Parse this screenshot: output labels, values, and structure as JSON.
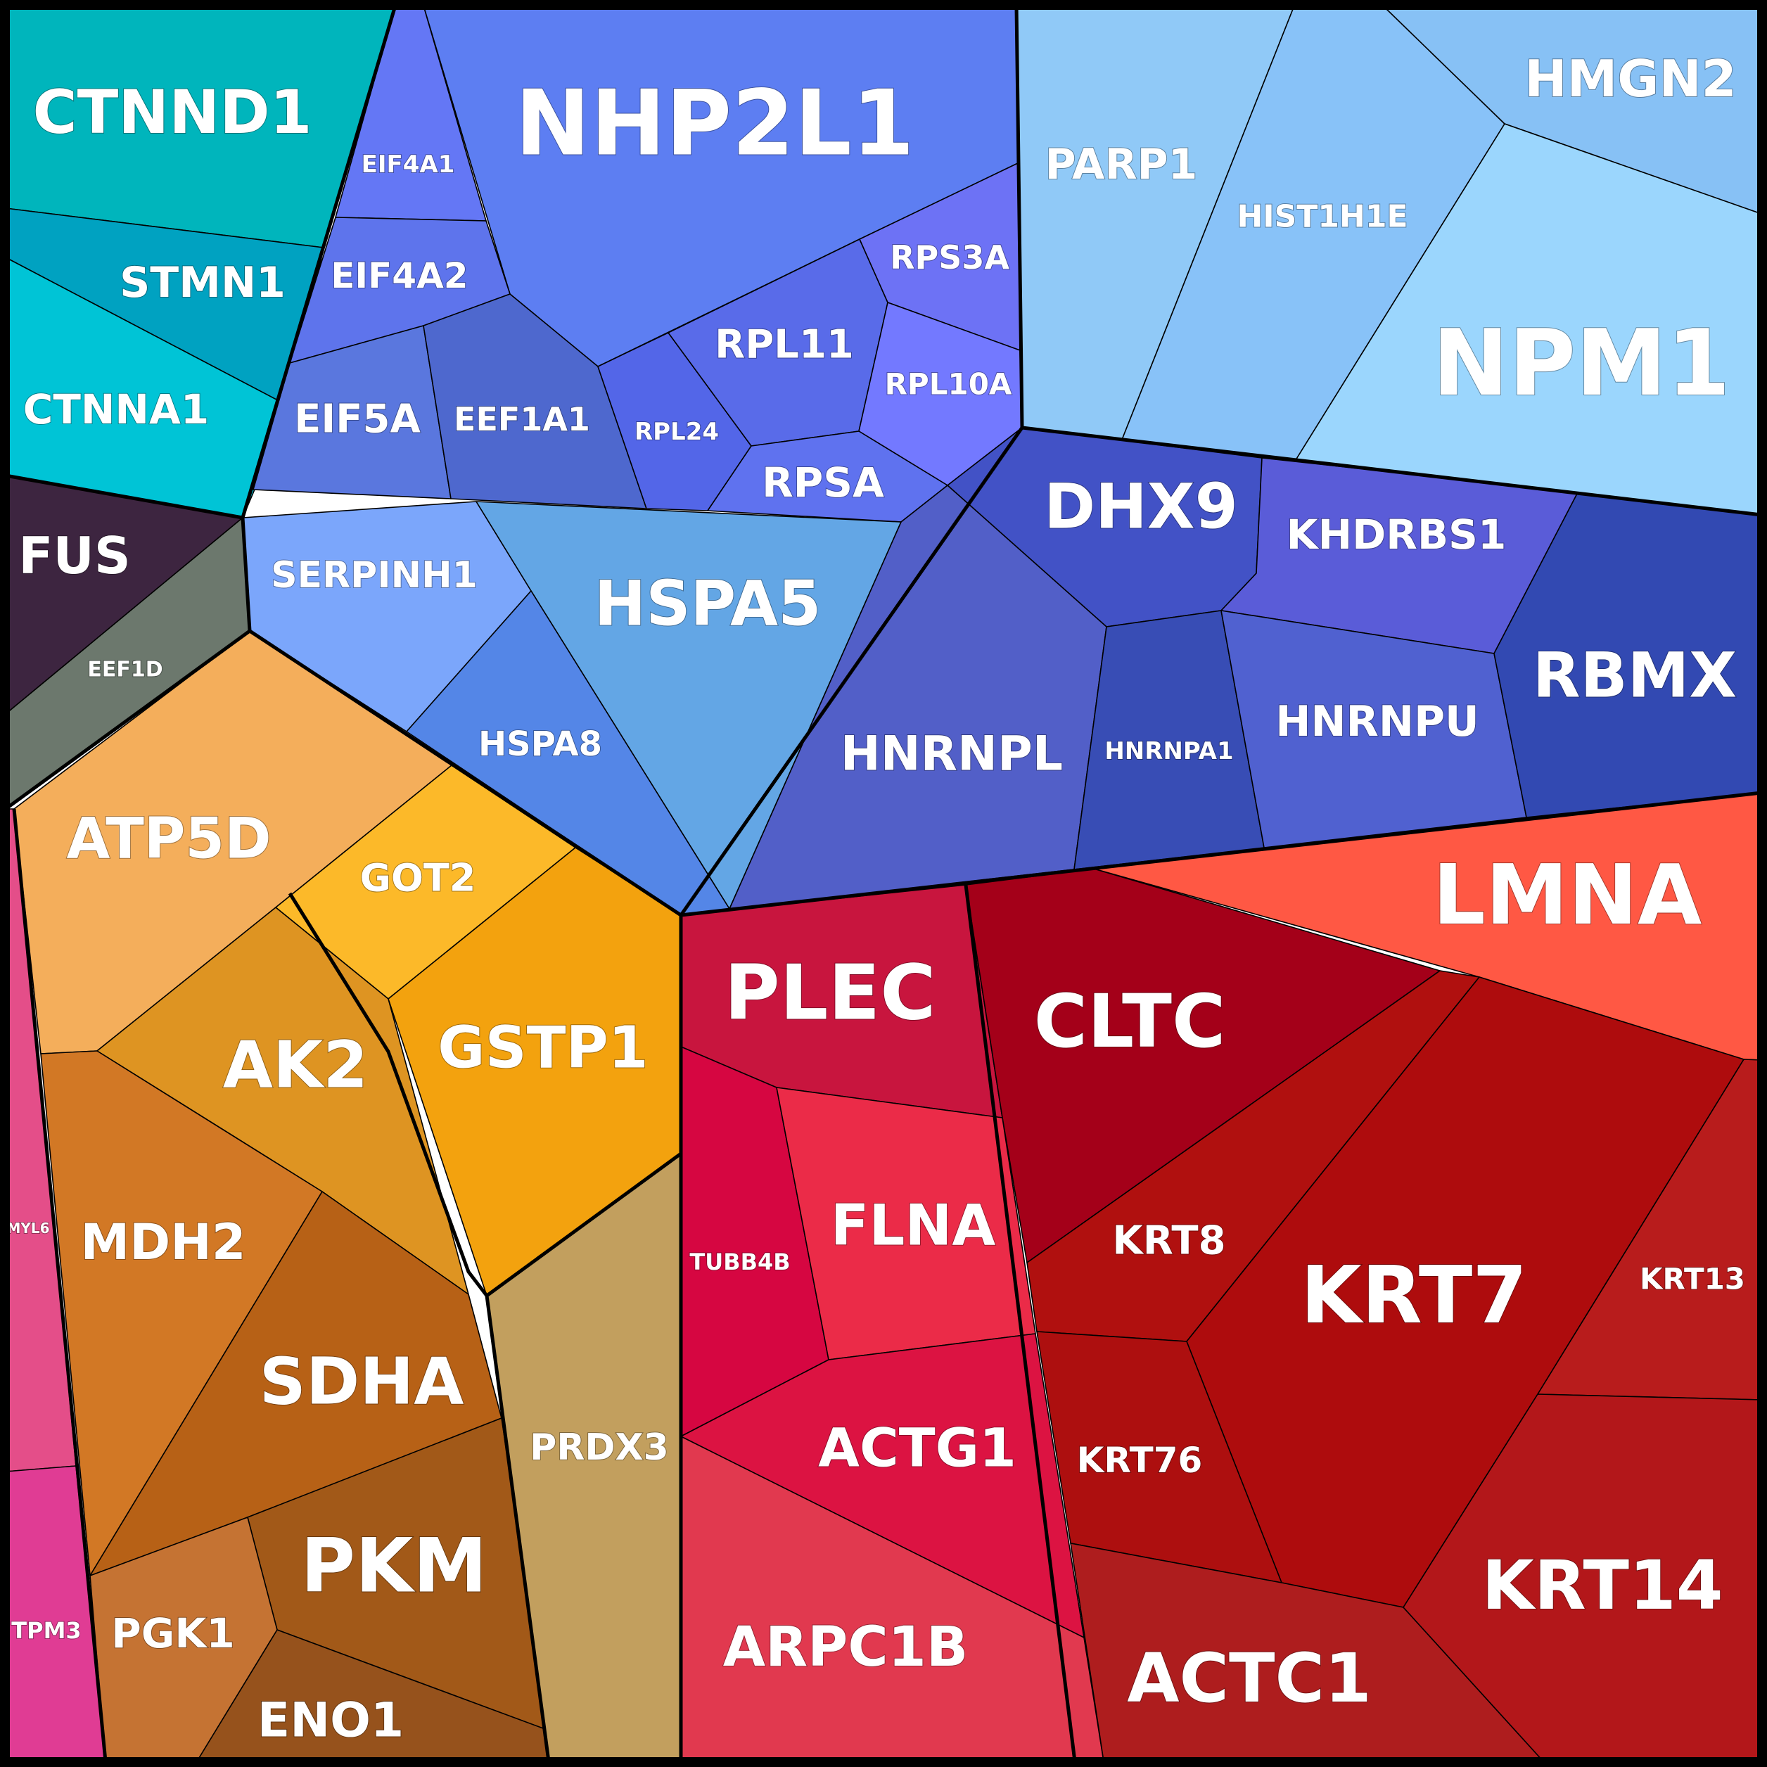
{
  "cells": [
    {
      "name": "CTNND1",
      "color": "#00B5BC"
    },
    {
      "name": "STMN1",
      "color": "#00A2C1"
    },
    {
      "name": "CTNNA1",
      "color": "#00C4D6"
    },
    {
      "name": "NHP2L1",
      "color": "#5D7EF2"
    },
    {
      "name": "EIF4A1",
      "color": "#6477F5"
    },
    {
      "name": "EIF4A2",
      "color": "#5E74EC"
    },
    {
      "name": "EIF5A",
      "color": "#5A77DE"
    },
    {
      "name": "EEF1A1",
      "color": "#4E68CE"
    },
    {
      "name": "RPL24",
      "color": "#5366E8"
    },
    {
      "name": "RPL11",
      "color": "#596BE9"
    },
    {
      "name": "RPS3A",
      "color": "#6D72F5"
    },
    {
      "name": "RPL10A",
      "color": "#7379FF"
    },
    {
      "name": "RPSA",
      "color": "#5F72EF"
    },
    {
      "name": "PARP1",
      "color": "#90C9F7"
    },
    {
      "name": "HIST1H1E",
      "color": "#88C2F8"
    },
    {
      "name": "HMGN2",
      "color": "#87C1F5"
    },
    {
      "name": "NPM1",
      "color": "#9BD6FD"
    },
    {
      "name": "FUS",
      "color": "#3D2540"
    },
    {
      "name": "EEF1D",
      "color": "#6C786D"
    },
    {
      "name": "SERPINH1",
      "color": "#7BA6FB"
    },
    {
      "name": "HSPA5",
      "color": "#63A6E5"
    },
    {
      "name": "HSPA8",
      "color": "#5486E7"
    },
    {
      "name": "DHX9",
      "color": "#4252C6"
    },
    {
      "name": "KHDRBS1",
      "color": "#5A5CD8"
    },
    {
      "name": "HNRNPL",
      "color": "#525FC8"
    },
    {
      "name": "HNRNPA1",
      "color": "#384DB5"
    },
    {
      "name": "HNRNPU",
      "color": "#5061D0"
    },
    {
      "name": "RBMX",
      "color": "#3249B2"
    },
    {
      "name": "ATP5D",
      "color": "#F4AE5B"
    },
    {
      "name": "GOT2",
      "color": "#FCB929"
    },
    {
      "name": "AK2",
      "color": "#DE9422"
    },
    {
      "name": "GSTP1",
      "color": "#F3A20E"
    },
    {
      "name": "MYL6",
      "color": "#E44E89"
    },
    {
      "name": "TPM3",
      "color": "#E03C94"
    },
    {
      "name": "MDH2",
      "color": "#D27825"
    },
    {
      "name": "SDHA",
      "color": "#B76116"
    },
    {
      "name": "PKM",
      "color": "#A25918"
    },
    {
      "name": "PGK1",
      "color": "#C57333"
    },
    {
      "name": "ENO1",
      "color": "#96521C"
    },
    {
      "name": "PRDX3",
      "color": "#C29F5E"
    },
    {
      "name": "PLEC",
      "color": "#C8153E"
    },
    {
      "name": "CLTC",
      "color": "#A40019"
    },
    {
      "name": "LMNA",
      "color": "#FF5844"
    },
    {
      "name": "TUBB4B",
      "color": "#D60641"
    },
    {
      "name": "FLNA",
      "color": "#EB2B48"
    },
    {
      "name": "ACTG1",
      "color": "#DC1342"
    },
    {
      "name": "ARPC1B",
      "color": "#E1394F"
    },
    {
      "name": "KRT8",
      "color": "#B0100F"
    },
    {
      "name": "KRT7",
      "color": "#AE0C0D"
    },
    {
      "name": "KRT13",
      "color": "#B81C1C"
    },
    {
      "name": "KRT76",
      "color": "#AD0F0F"
    },
    {
      "name": "ACTC1",
      "color": "#AE1D1E"
    },
    {
      "name": "KRT14",
      "color": "#B3171A"
    }
  ]
}
